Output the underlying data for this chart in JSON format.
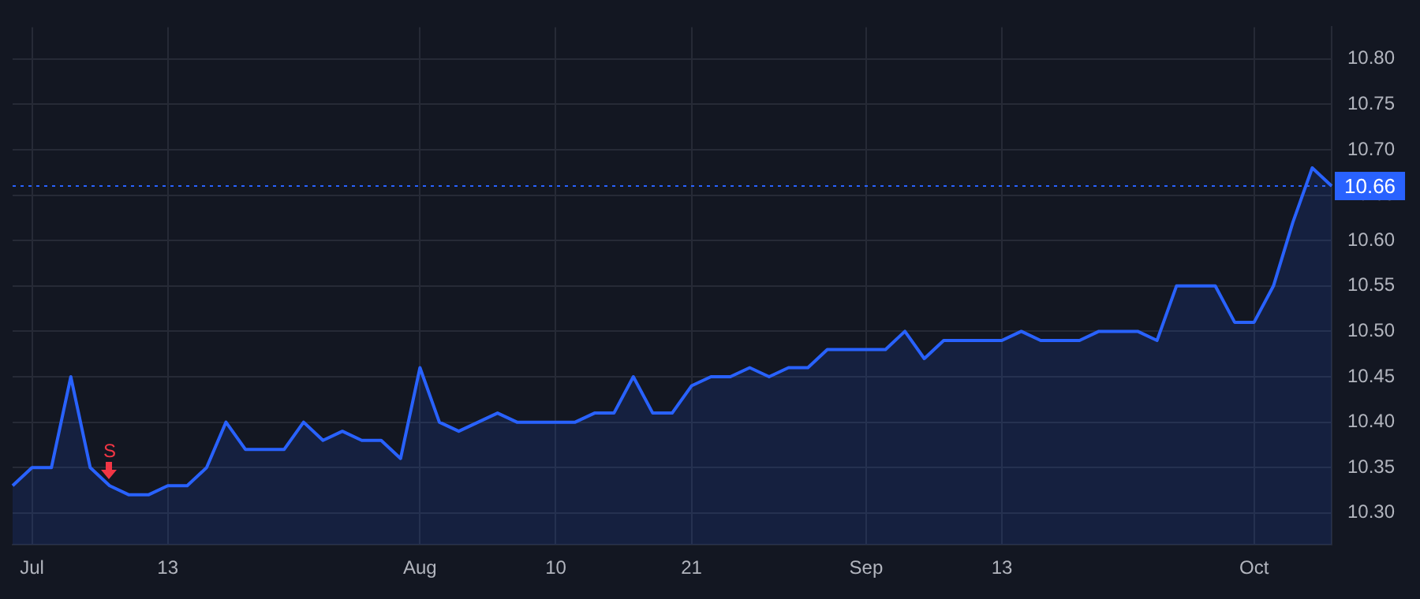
{
  "chart_data": {
    "type": "area",
    "categories": [
      null,
      "Jul",
      null,
      null,
      null,
      null,
      null,
      null,
      "13",
      null,
      null,
      null,
      null,
      null,
      null,
      null,
      null,
      null,
      null,
      null,
      null,
      "Aug",
      null,
      null,
      null,
      null,
      null,
      null,
      "10",
      null,
      null,
      null,
      null,
      null,
      null,
      "21",
      null,
      null,
      null,
      null,
      null,
      null,
      null,
      null,
      "Sep",
      null,
      null,
      null,
      null,
      null,
      null,
      "13",
      null,
      null,
      null,
      null,
      null,
      null,
      null,
      null,
      null,
      null,
      null,
      null,
      "Oct",
      null,
      null,
      null,
      null
    ],
    "series": [
      {
        "color": "#2962ff",
        "values": [
          10.33,
          10.35,
          10.35,
          10.45,
          10.35,
          10.33,
          10.32,
          10.32,
          10.33,
          10.33,
          10.35,
          10.4,
          10.37,
          10.37,
          10.37,
          10.4,
          10.38,
          10.39,
          10.38,
          10.38,
          10.36,
          10.46,
          10.4,
          10.39,
          10.4,
          10.41,
          10.4,
          10.4,
          10.4,
          10.4,
          10.41,
          10.41,
          10.45,
          10.41,
          10.41,
          10.44,
          10.45,
          10.45,
          10.46,
          10.45,
          10.46,
          10.46,
          10.48,
          10.48,
          10.48,
          10.48,
          10.5,
          10.47,
          10.49,
          10.49,
          10.49,
          10.49,
          10.5,
          10.49,
          10.49,
          10.49,
          10.5,
          10.5,
          10.5,
          10.49,
          10.55,
          10.55,
          10.55,
          10.51,
          10.51,
          10.55,
          10.62,
          10.68,
          10.66
        ]
      }
    ],
    "ylim": [
      10.265,
      10.835
    ],
    "yticks": [
      {
        "value": 10.3,
        "label": "10.30"
      },
      10.35,
      {
        "value": 10.4,
        "label": "10.40"
      },
      10.45,
      {
        "value": 10.5,
        "label": "10.50"
      },
      10.55,
      {
        "value": 10.6,
        "label": "10.60"
      },
      10.65,
      {
        "value": 10.7,
        "label": "10.70"
      },
      10.75,
      {
        "value": 10.8,
        "label": "10.80"
      }
    ],
    "grid": true,
    "ref_lines": [
      {
        "axis": "y",
        "value": 10.66,
        "label": "10.66",
        "color": "#2962ff",
        "line_style": "dotted"
      }
    ],
    "annotations": [
      {
        "text": "S",
        "y": 10.33
      }
    ]
  }
}
